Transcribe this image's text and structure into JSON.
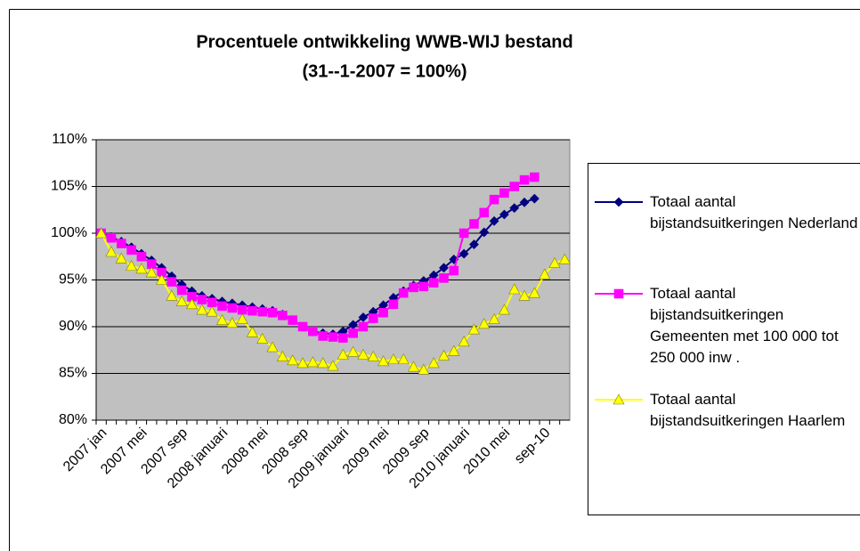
{
  "chart_data": {
    "type": "line",
    "title": "Procentuele ontwikkeling WWB-WIJ bestand",
    "subtitle": "(31--1-2007 = 100%)",
    "categories": [
      "2007 jan",
      null,
      null,
      null,
      "2007 mei",
      null,
      null,
      null,
      "2007 sep",
      null,
      null,
      null,
      "2008 januari",
      null,
      null,
      null,
      "2008 mei",
      null,
      null,
      null,
      "2008 sep",
      null,
      null,
      null,
      "2009 januari",
      null,
      null,
      null,
      "2009 mei",
      null,
      null,
      null,
      "2009 sep",
      null,
      null,
      null,
      "2010 januari",
      null,
      null,
      null,
      "2010 mei",
      null,
      null,
      null,
      "sep-10",
      null,
      null
    ],
    "series": [
      {
        "name": "Totaal aantal bijstandsuitkeringen Nederland",
        "color": "#000080",
        "marker": "diamond",
        "values": [
          100,
          99.6,
          99.1,
          98.5,
          97.8,
          97.1,
          96.3,
          95.4,
          94.5,
          93.8,
          93.3,
          93.0,
          92.7,
          92.5,
          92.3,
          92.1,
          91.9,
          91.7,
          91.3,
          90.7,
          90.0,
          89.5,
          89.3,
          89.2,
          89.5,
          90.2,
          91.0,
          91.6,
          92.3,
          93.1,
          93.8,
          94.4,
          94.9,
          95.5,
          96.3,
          97.2,
          97.8,
          98.8,
          100.1,
          101.3,
          102.0,
          102.7,
          103.3,
          103.7,
          null,
          null,
          null
        ]
      },
      {
        "name": "Totaal aantal bijstandsuitkeringen Gemeenten met 100 000 tot 250 000 inw .",
        "color": "#ff00ff",
        "marker": "square",
        "values": [
          100,
          99.5,
          98.9,
          98.2,
          97.5,
          96.7,
          95.8,
          94.8,
          93.9,
          93.2,
          92.9,
          92.6,
          92.2,
          92.0,
          91.8,
          91.7,
          91.6,
          91.5,
          91.2,
          90.7,
          90.0,
          89.5,
          89.0,
          88.9,
          88.8,
          89.3,
          90.0,
          90.9,
          91.5,
          92.4,
          93.6,
          94.2,
          94.3,
          94.7,
          95.2,
          96.0,
          100.0,
          101.0,
          102.2,
          103.6,
          104.3,
          105.0,
          105.7,
          106.0,
          null,
          null,
          null
        ]
      },
      {
        "name": "Totaal aantal bijstandsuitkeringen Haarlem",
        "color": "#ffff00",
        "marker": "triangle",
        "values": [
          100,
          98.0,
          97.3,
          96.5,
          96.2,
          95.8,
          95.0,
          93.3,
          92.7,
          92.4,
          91.8,
          91.6,
          90.7,
          90.4,
          90.8,
          89.4,
          88.7,
          87.8,
          86.8,
          86.4,
          86.1,
          86.2,
          86.1,
          85.8,
          87.0,
          87.3,
          87.0,
          86.8,
          86.3,
          86.5,
          86.5,
          85.7,
          85.4,
          86.1,
          86.9,
          87.4,
          88.4,
          89.7,
          90.3,
          90.8,
          91.8,
          94.0,
          93.3,
          93.6,
          95.6,
          96.8,
          97.2
        ]
      }
    ],
    "ylim": [
      80,
      110
    ],
    "yticks": [
      {
        "value": 80,
        "label": "80%"
      },
      {
        "value": 85,
        "label": "85%"
      },
      {
        "value": 90,
        "label": "90%"
      },
      {
        "value": 95,
        "label": "95%"
      },
      {
        "value": 100,
        "label": "100%"
      },
      {
        "value": 105,
        "label": "105%"
      },
      {
        "value": 110,
        "label": "110%"
      }
    ],
    "grid": true,
    "legend": "right",
    "plot_background": "#c0c0c0"
  }
}
